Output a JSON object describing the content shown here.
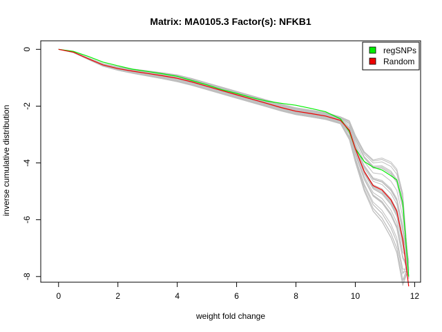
{
  "chart_data": {
    "type": "line",
    "title": "Matrix: MA0105.3 Factor(s): NFKB1",
    "xlabel": "weight fold change",
    "ylabel": "inverse cumulative distribution",
    "xlim": [
      -0.6,
      12.2
    ],
    "ylim": [
      -8.2,
      0.3
    ],
    "xticks": [
      0,
      2,
      4,
      6,
      8,
      10,
      12
    ],
    "yticks": [
      0,
      -2,
      -4,
      -6,
      -8
    ],
    "legend_position": "top-right",
    "grid": false,
    "background_series": {
      "description_color": "#bebebe",
      "count": 30
    },
    "series": [
      {
        "name": "regSNPs",
        "color": "#00ee00",
        "x": [
          0,
          0.5,
          1.0,
          1.5,
          2,
          2.5,
          3,
          3.5,
          4,
          4.5,
          5,
          5.5,
          6,
          6.5,
          7,
          7.5,
          8,
          8.5,
          9,
          9.5,
          9.8,
          10.0,
          10.3,
          10.6,
          10.9,
          11.2,
          11.4,
          11.6,
          11.8
        ],
        "y": [
          0,
          -0.07,
          -0.25,
          -0.45,
          -0.58,
          -0.7,
          -0.78,
          -0.86,
          -0.95,
          -1.1,
          -1.25,
          -1.42,
          -1.55,
          -1.7,
          -1.82,
          -1.9,
          -1.97,
          -2.08,
          -2.2,
          -2.45,
          -2.9,
          -3.5,
          -3.95,
          -4.15,
          -4.25,
          -4.45,
          -4.6,
          -5.4,
          -8.0
        ]
      },
      {
        "name": "Random",
        "color": "#ee0000",
        "x": [
          0,
          0.5,
          1.0,
          1.5,
          2,
          2.5,
          3,
          3.5,
          4,
          4.5,
          5,
          5.5,
          6,
          6.5,
          7,
          7.5,
          8,
          8.5,
          9,
          9.5,
          9.8,
          10.0,
          10.3,
          10.6,
          10.9,
          11.2,
          11.4,
          11.6,
          11.8
        ],
        "y": [
          0,
          -0.1,
          -0.33,
          -0.55,
          -0.68,
          -0.77,
          -0.85,
          -0.93,
          -1.02,
          -1.15,
          -1.3,
          -1.45,
          -1.6,
          -1.75,
          -1.9,
          -2.05,
          -2.18,
          -2.26,
          -2.35,
          -2.5,
          -2.85,
          -3.5,
          -4.3,
          -4.8,
          -4.95,
          -5.3,
          -5.7,
          -6.7,
          -8.4
        ]
      }
    ]
  }
}
